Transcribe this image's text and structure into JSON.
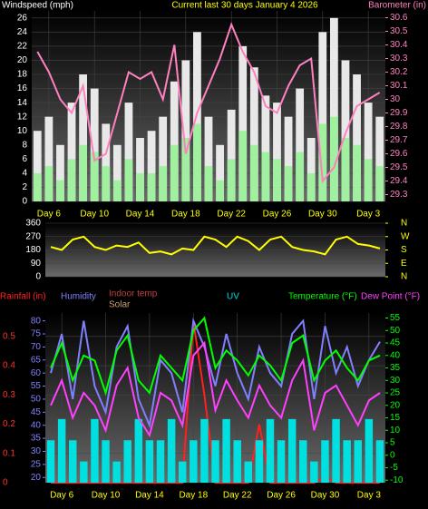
{
  "chart_data": [
    {
      "type": "combo",
      "title": "Current last 30 days January 4 2026",
      "ylabel": "Windspeed (mph)",
      "y2label": "Barometer (in)",
      "categories": [
        null,
        "Day 6",
        null,
        null,
        null,
        "Day 10",
        null,
        null,
        null,
        "Day 14",
        null,
        null,
        null,
        "Day 18",
        null,
        null,
        null,
        "Day 22",
        null,
        null,
        null,
        "Day 26",
        null,
        null,
        null,
        "Day 30",
        null,
        null,
        null,
        "Day 3",
        null
      ],
      "ylim": [
        0,
        27
      ],
      "yticks": [
        0,
        2,
        4,
        6,
        8,
        10,
        12,
        14,
        16,
        18,
        20,
        22,
        24,
        26
      ],
      "ycolor": "#ffffff",
      "y2lim": [
        29.25,
        30.65
      ],
      "y2ticks": [
        29.3,
        29.4,
        29.5,
        29.6,
        29.7,
        29.8,
        29.9,
        30,
        30.1,
        30.2,
        30.3,
        30.4,
        30.5,
        30.6
      ],
      "y2color": "#ff80c0",
      "grid": true,
      "series": [
        {
          "name": "Gust",
          "kind": "bar",
          "color": "#e8e8e8",
          "values": [
            10,
            12,
            8,
            14,
            18,
            16,
            11,
            8,
            14,
            9,
            10,
            12,
            17,
            20,
            24,
            12,
            8,
            13,
            22,
            19,
            15,
            14,
            12,
            16,
            9,
            24,
            26,
            20,
            18,
            14,
            12
          ]
        },
        {
          "name": "Average",
          "kind": "bar",
          "color": "#a0f0a0",
          "values": [
            4,
            5,
            3,
            6,
            8,
            7,
            5,
            3,
            6,
            4,
            4,
            5,
            8,
            9,
            11,
            5,
            3,
            6,
            10,
            8,
            7,
            6,
            5,
            7,
            4,
            11,
            12,
            9,
            8,
            6,
            5
          ]
        },
        {
          "name": "Barometer",
          "kind": "line",
          "axis": "y2",
          "color": "#ff80c0",
          "values": [
            30.35,
            30.2,
            30.0,
            29.9,
            30.1,
            29.55,
            29.6,
            29.9,
            30.2,
            30.15,
            30.2,
            30.0,
            30.4,
            29.6,
            29.9,
            30.1,
            30.3,
            30.55,
            30.35,
            30.2,
            29.95,
            29.9,
            30.1,
            30.25,
            30.3,
            29.4,
            29.5,
            29.75,
            29.95,
            30.0,
            30.05
          ]
        }
      ]
    },
    {
      "type": "combo",
      "ylim": [
        0,
        360
      ],
      "yticks": [
        0,
        90,
        180,
        270,
        360
      ],
      "ycolor": "#ffffff",
      "y2lim": [
        0,
        360
      ],
      "y2ticks": [
        {
          "value": 0,
          "label": "N"
        },
        {
          "value": 90,
          "label": "E"
        },
        {
          "value": 180,
          "label": "S"
        },
        {
          "value": 270,
          "label": "W"
        },
        {
          "value": 360,
          "label": "N"
        }
      ],
      "y2color": "#ffff00",
      "grid": true,
      "series": [
        {
          "name": "Direction",
          "kind": "line",
          "color": "#ffff00",
          "values": [
            200,
            180,
            250,
            270,
            200,
            180,
            210,
            200,
            230,
            160,
            170,
            150,
            190,
            180,
            270,
            250,
            200,
            270,
            240,
            180,
            250,
            270,
            200,
            180,
            170,
            150,
            250,
            270,
            220,
            210,
            190
          ]
        }
      ]
    },
    {
      "type": "combo",
      "annotations": [
        "Indoor temp",
        "Solar"
      ],
      "annotation_colors": [
        "#c04040",
        "#d0a070"
      ],
      "categories": [
        null,
        "Day 6",
        null,
        null,
        null,
        "Day 10",
        null,
        null,
        null,
        "Day 14",
        null,
        null,
        null,
        "Day 18",
        null,
        null,
        null,
        "Day 22",
        null,
        null,
        null,
        "Day 26",
        null,
        null,
        null,
        "Day 30",
        null,
        null,
        null,
        "Day 3",
        null
      ],
      "ylim": [
        0,
        0.58
      ],
      "yticks": [
        0,
        0.1,
        0.2,
        0.3,
        0.4,
        0.5
      ],
      "ycolor": "#ff3030",
      "y2lim": [
        -11,
        57
      ],
      "y2ticks": [
        -10,
        -5,
        0,
        5,
        10,
        15,
        20,
        25,
        30,
        35,
        40,
        45,
        50,
        55
      ],
      "y2color": "#00ff00",
      "y3lim": [
        18,
        83
      ],
      "y3ticks": [
        20,
        25,
        30,
        35,
        40,
        45,
        50,
        55,
        60,
        65,
        70,
        75,
        80
      ],
      "y3color": "#8080ff",
      "y4lim": [
        0,
        8
      ],
      "grid": true,
      "series": [
        {
          "name": "Rainfall (in)",
          "kind": "line",
          "color": "#ff2020",
          "values": [
            0,
            0,
            0,
            0,
            0,
            0,
            0,
            0,
            0,
            0,
            0,
            0,
            0,
            0.55,
            0.3,
            0,
            0,
            0,
            0,
            0.2,
            0,
            0,
            0,
            0,
            0,
            0.02,
            0,
            0,
            0,
            0,
            0
          ]
        },
        {
          "name": "Humidity",
          "kind": "line",
          "axis": "y3",
          "color": "#8080ff",
          "values": [
            60,
            75,
            50,
            80,
            55,
            45,
            70,
            78,
            50,
            40,
            65,
            60,
            45,
            80,
            70,
            55,
            75,
            60,
            50,
            70,
            60,
            55,
            75,
            80,
            50,
            78,
            60,
            70,
            55,
            65,
            72
          ]
        },
        {
          "name": "UV",
          "kind": "bar",
          "axis": "y4",
          "color": "#00e0e0",
          "values": [
            2,
            3,
            2,
            1,
            3,
            2,
            1,
            2,
            3,
            2,
            2,
            3,
            1,
            2,
            3,
            2,
            3,
            2,
            1,
            2,
            3,
            2,
            3,
            2,
            1,
            2,
            3,
            2,
            2,
            3,
            2
          ]
        },
        {
          "name": "Temperature (°F)",
          "kind": "line",
          "axis": "y2",
          "color": "#00ff00",
          "values": [
            35,
            45,
            30,
            40,
            38,
            25,
            42,
            48,
            30,
            25,
            40,
            35,
            30,
            50,
            55,
            35,
            42,
            38,
            32,
            40,
            36,
            30,
            45,
            48,
            30,
            38,
            42,
            35,
            30,
            38,
            40
          ]
        },
        {
          "name": "Dew Point (°F)",
          "kind": "line",
          "axis": "y2",
          "color": "#ff40ff",
          "values": [
            20,
            30,
            15,
            25,
            20,
            10,
            28,
            35,
            15,
            8,
            25,
            22,
            12,
            40,
            45,
            18,
            30,
            22,
            15,
            28,
            20,
            15,
            30,
            38,
            10,
            25,
            28,
            20,
            12,
            22,
            25
          ]
        }
      ]
    }
  ]
}
